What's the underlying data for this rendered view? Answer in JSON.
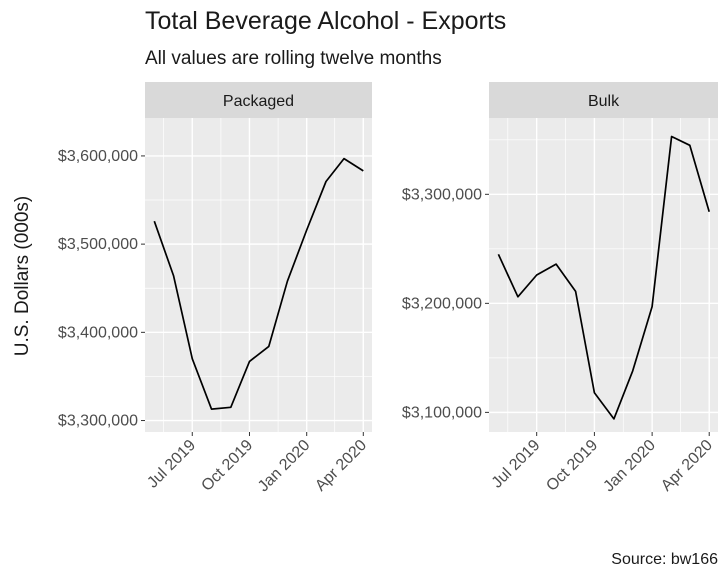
{
  "chart_title": "Total Beverage Alcohol - Exports",
  "chart_subtitle": "All values are rolling twelve months",
  "caption": "Source: bw166",
  "colors": {
    "panel_background": "#ebebeb",
    "strip_background": "#d9d9d9",
    "grid": "#ffffff",
    "line": "#000000"
  },
  "chart_data": [
    {
      "type": "line",
      "facet": "Packaged",
      "ylabel": "U.S. Dollars (000s)",
      "x": [
        "2019-05",
        "2019-06",
        "2019-07",
        "2019-08",
        "2019-09",
        "2019-10",
        "2019-11",
        "2019-12",
        "2020-01",
        "2020-02",
        "2020-03",
        "2020-04"
      ],
      "x_tick_labels": [
        "Jul 2019",
        "Oct 2019",
        "Jan 2020",
        "Apr 2020"
      ],
      "x_tick_dates": [
        "2019-07",
        "2019-10",
        "2020-01",
        "2020-04"
      ],
      "y": [
        3526000,
        3464000,
        3370000,
        3313000,
        3315000,
        3367000,
        3384000,
        3458000,
        3516000,
        3571000,
        3597000,
        3583000
      ],
      "y_ticks": [
        3300000,
        3400000,
        3500000,
        3600000
      ],
      "y_tick_labels": [
        "$3,300,000",
        "$3,400,000",
        "$3,500,000",
        "$3,600,000"
      ],
      "ylim": [
        3287000,
        3643000
      ],
      "grid": true
    },
    {
      "type": "line",
      "facet": "Bulk",
      "x": [
        "2019-05",
        "2019-06",
        "2019-07",
        "2019-08",
        "2019-09",
        "2019-10",
        "2019-11",
        "2019-12",
        "2020-01",
        "2020-02",
        "2020-03",
        "2020-04"
      ],
      "x_tick_labels": [
        "Jul 2019",
        "Oct 2019",
        "Jan 2020",
        "Apr 2020"
      ],
      "x_tick_dates": [
        "2019-07",
        "2019-10",
        "2020-01",
        "2020-04"
      ],
      "y": [
        3245000,
        3206000,
        3226000,
        3236000,
        3211000,
        3118000,
        3094000,
        3138000,
        3197000,
        3353000,
        3345000,
        3284000
      ],
      "y_ticks": [
        3100000,
        3200000,
        3300000
      ],
      "y_tick_labels": [
        "$3,100,000",
        "$3,200,000",
        "$3,300,000"
      ],
      "ylim": [
        3082000,
        3370000
      ],
      "grid": true
    }
  ]
}
